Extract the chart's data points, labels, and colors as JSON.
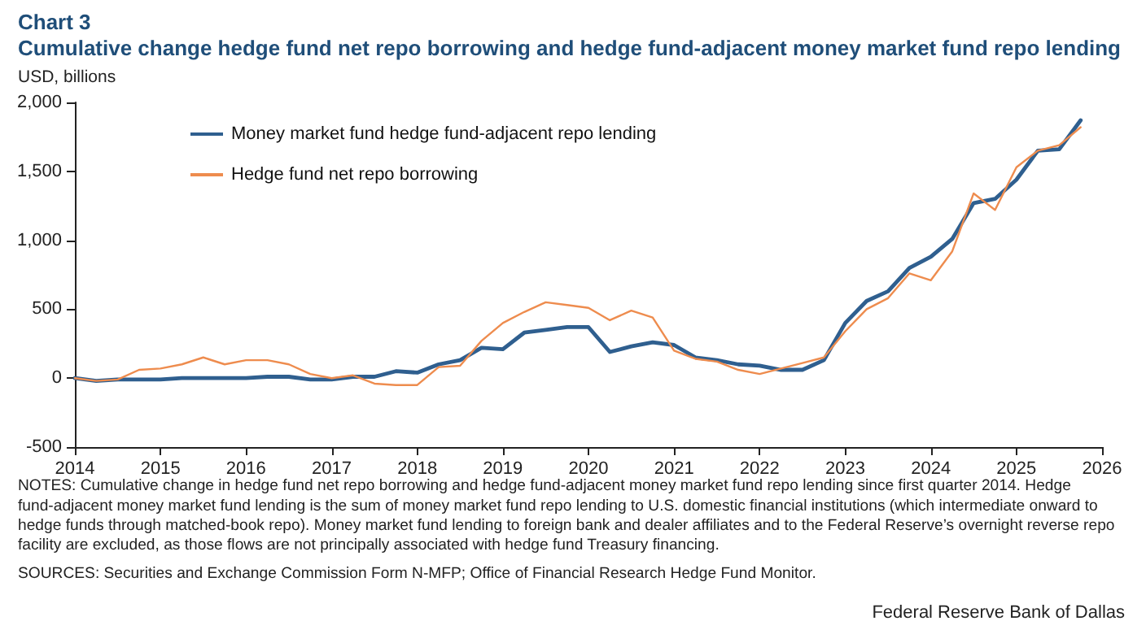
{
  "chart_data": {
    "type": "line",
    "title": "Chart 3",
    "subtitle": "Cumulative change hedge fund net repo borrowing and hedge fund-adjacent money market fund repo lending",
    "ylabel": "USD, billions",
    "x": [
      2014,
      2014.25,
      2014.5,
      2014.75,
      2015,
      2015.25,
      2015.5,
      2015.75,
      2016,
      2016.25,
      2016.5,
      2016.75,
      2017,
      2017.25,
      2017.5,
      2017.75,
      2018,
      2018.25,
      2018.5,
      2018.75,
      2019,
      2019.25,
      2019.5,
      2019.75,
      2020,
      2020.25,
      2020.5,
      2020.75,
      2021,
      2021.25,
      2021.5,
      2021.75,
      2022,
      2022.25,
      2022.5,
      2022.75,
      2023,
      2023.25,
      2023.5,
      2023.75,
      2024,
      2024.25,
      2024.5,
      2024.75,
      2025,
      2025.25,
      2025.5,
      2025.75
    ],
    "series": [
      {
        "name": "Money market fund hedge fund-adjacent repo lending",
        "color": "#2f5f8f",
        "values": [
          0,
          -20,
          -10,
          -10,
          -10,
          0,
          0,
          0,
          0,
          10,
          10,
          -10,
          -10,
          10,
          10,
          50,
          40,
          100,
          130,
          220,
          210,
          330,
          350,
          370,
          370,
          190,
          230,
          260,
          240,
          150,
          130,
          100,
          90,
          60,
          60,
          130,
          400,
          560,
          630,
          800,
          880,
          1010,
          1270,
          1300,
          1440,
          1650,
          1660,
          1870
        ]
      },
      {
        "name": "Hedge fund net repo borrowing",
        "color": "#ee8c4e",
        "values": [
          0,
          -20,
          -10,
          60,
          70,
          100,
          150,
          100,
          130,
          130,
          100,
          30,
          0,
          20,
          -40,
          -50,
          -50,
          80,
          90,
          270,
          400,
          480,
          550,
          530,
          510,
          420,
          490,
          440,
          200,
          140,
          120,
          60,
          30,
          70,
          110,
          150,
          340,
          500,
          580,
          760,
          710,
          920,
          1340,
          1220,
          1530,
          1650,
          1690,
          1820
        ]
      }
    ],
    "xlim": [
      2014,
      2026
    ],
    "xticks": [
      2014,
      2015,
      2016,
      2017,
      2018,
      2019,
      2020,
      2021,
      2022,
      2023,
      2024,
      2025,
      2026
    ],
    "ylim": [
      -500,
      2000
    ],
    "yticks": [
      -500,
      0,
      500,
      {
        "value": 1000,
        "label": "1,000"
      },
      {
        "value": 1500,
        "label": "1,500"
      },
      {
        "value": 2000,
        "label": "2,000"
      }
    ],
    "grid": false,
    "legend": "top left",
    "marker": "none",
    "line_style": "solid",
    "annotations": [
      "NOTES: Cumulative change in hedge fund net repo borrowing and hedge fund-adjacent money market fund repo lending since first quarter 2014. Hedge fund-adjacent money market fund lending is the sum of money market fund repo lending to U.S. domestic financial institutions (which intermediate onward to hedge funds through matched-book repo). Money market fund lending to foreign bank and dealer affiliates and to the Federal Reserve’s overnight reverse repo facility are excluded, as those flows are not principally associated with hedge fund Treasury financing.",
      "SOURCES: Securities and Exchange Commission Form N-MFP; Office of Financial Research Hedge Fund Monitor.",
      "Federal Reserve Bank of Dallas"
    ]
  }
}
